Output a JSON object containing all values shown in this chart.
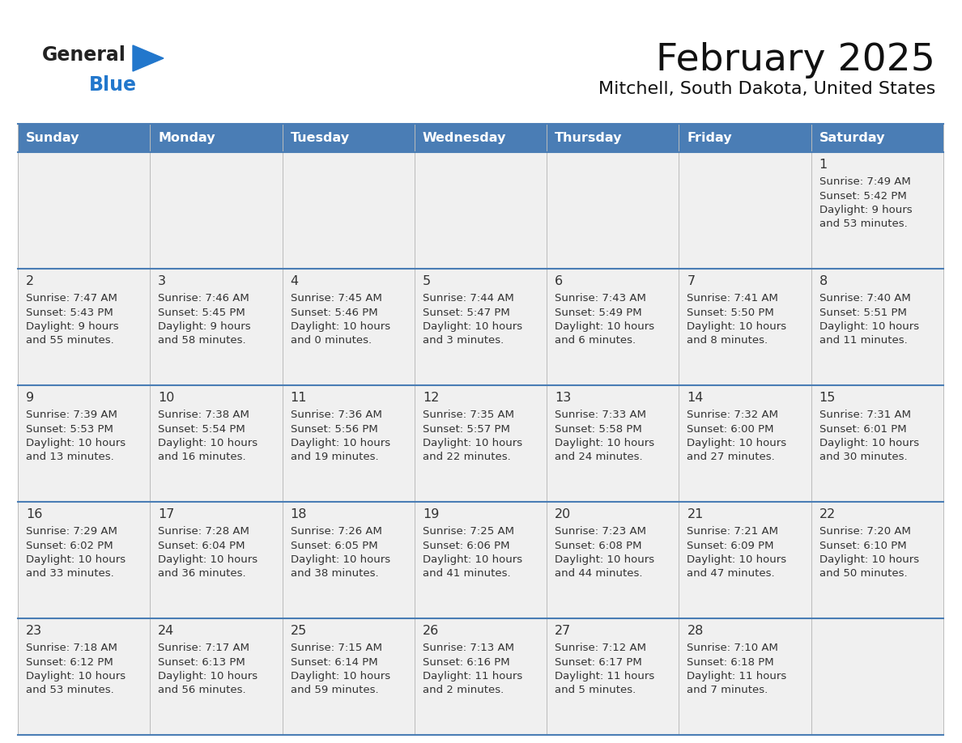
{
  "title": "February 2025",
  "subtitle": "Mitchell, South Dakota, United States",
  "header_color": "#4A7DB5",
  "header_text_color": "#FFFFFF",
  "cell_bg": "#F0F0F0",
  "row1_bg": "#F0F0F0",
  "border_color": "#4A7DB5",
  "grid_color": "#BBBBBB",
  "day_headers": [
    "Sunday",
    "Monday",
    "Tuesday",
    "Wednesday",
    "Thursday",
    "Friday",
    "Saturday"
  ],
  "logo_text1": "General",
  "logo_text2": "Blue",
  "logo_color1": "#222222",
  "logo_color2": "#2277CC",
  "triangle_color": "#2277CC",
  "text_color": "#333333",
  "days": [
    {
      "day": 1,
      "col": 6,
      "row": 0,
      "sunrise": "7:49 AM",
      "sunset": "5:42 PM",
      "daylight_line1": "Daylight: 9 hours",
      "daylight_line2": "and 53 minutes."
    },
    {
      "day": 2,
      "col": 0,
      "row": 1,
      "sunrise": "7:47 AM",
      "sunset": "5:43 PM",
      "daylight_line1": "Daylight: 9 hours",
      "daylight_line2": "and 55 minutes."
    },
    {
      "day": 3,
      "col": 1,
      "row": 1,
      "sunrise": "7:46 AM",
      "sunset": "5:45 PM",
      "daylight_line1": "Daylight: 9 hours",
      "daylight_line2": "and 58 minutes."
    },
    {
      "day": 4,
      "col": 2,
      "row": 1,
      "sunrise": "7:45 AM",
      "sunset": "5:46 PM",
      "daylight_line1": "Daylight: 10 hours",
      "daylight_line2": "and 0 minutes."
    },
    {
      "day": 5,
      "col": 3,
      "row": 1,
      "sunrise": "7:44 AM",
      "sunset": "5:47 PM",
      "daylight_line1": "Daylight: 10 hours",
      "daylight_line2": "and 3 minutes."
    },
    {
      "day": 6,
      "col": 4,
      "row": 1,
      "sunrise": "7:43 AM",
      "sunset": "5:49 PM",
      "daylight_line1": "Daylight: 10 hours",
      "daylight_line2": "and 6 minutes."
    },
    {
      "day": 7,
      "col": 5,
      "row": 1,
      "sunrise": "7:41 AM",
      "sunset": "5:50 PM",
      "daylight_line1": "Daylight: 10 hours",
      "daylight_line2": "and 8 minutes."
    },
    {
      "day": 8,
      "col": 6,
      "row": 1,
      "sunrise": "7:40 AM",
      "sunset": "5:51 PM",
      "daylight_line1": "Daylight: 10 hours",
      "daylight_line2": "and 11 minutes."
    },
    {
      "day": 9,
      "col": 0,
      "row": 2,
      "sunrise": "7:39 AM",
      "sunset": "5:53 PM",
      "daylight_line1": "Daylight: 10 hours",
      "daylight_line2": "and 13 minutes."
    },
    {
      "day": 10,
      "col": 1,
      "row": 2,
      "sunrise": "7:38 AM",
      "sunset": "5:54 PM",
      "daylight_line1": "Daylight: 10 hours",
      "daylight_line2": "and 16 minutes."
    },
    {
      "day": 11,
      "col": 2,
      "row": 2,
      "sunrise": "7:36 AM",
      "sunset": "5:56 PM",
      "daylight_line1": "Daylight: 10 hours",
      "daylight_line2": "and 19 minutes."
    },
    {
      "day": 12,
      "col": 3,
      "row": 2,
      "sunrise": "7:35 AM",
      "sunset": "5:57 PM",
      "daylight_line1": "Daylight: 10 hours",
      "daylight_line2": "and 22 minutes."
    },
    {
      "day": 13,
      "col": 4,
      "row": 2,
      "sunrise": "7:33 AM",
      "sunset": "5:58 PM",
      "daylight_line1": "Daylight: 10 hours",
      "daylight_line2": "and 24 minutes."
    },
    {
      "day": 14,
      "col": 5,
      "row": 2,
      "sunrise": "7:32 AM",
      "sunset": "6:00 PM",
      "daylight_line1": "Daylight: 10 hours",
      "daylight_line2": "and 27 minutes."
    },
    {
      "day": 15,
      "col": 6,
      "row": 2,
      "sunrise": "7:31 AM",
      "sunset": "6:01 PM",
      "daylight_line1": "Daylight: 10 hours",
      "daylight_line2": "and 30 minutes."
    },
    {
      "day": 16,
      "col": 0,
      "row": 3,
      "sunrise": "7:29 AM",
      "sunset": "6:02 PM",
      "daylight_line1": "Daylight: 10 hours",
      "daylight_line2": "and 33 minutes."
    },
    {
      "day": 17,
      "col": 1,
      "row": 3,
      "sunrise": "7:28 AM",
      "sunset": "6:04 PM",
      "daylight_line1": "Daylight: 10 hours",
      "daylight_line2": "and 36 minutes."
    },
    {
      "day": 18,
      "col": 2,
      "row": 3,
      "sunrise": "7:26 AM",
      "sunset": "6:05 PM",
      "daylight_line1": "Daylight: 10 hours",
      "daylight_line2": "and 38 minutes."
    },
    {
      "day": 19,
      "col": 3,
      "row": 3,
      "sunrise": "7:25 AM",
      "sunset": "6:06 PM",
      "daylight_line1": "Daylight: 10 hours",
      "daylight_line2": "and 41 minutes."
    },
    {
      "day": 20,
      "col": 4,
      "row": 3,
      "sunrise": "7:23 AM",
      "sunset": "6:08 PM",
      "daylight_line1": "Daylight: 10 hours",
      "daylight_line2": "and 44 minutes."
    },
    {
      "day": 21,
      "col": 5,
      "row": 3,
      "sunrise": "7:21 AM",
      "sunset": "6:09 PM",
      "daylight_line1": "Daylight: 10 hours",
      "daylight_line2": "and 47 minutes."
    },
    {
      "day": 22,
      "col": 6,
      "row": 3,
      "sunrise": "7:20 AM",
      "sunset": "6:10 PM",
      "daylight_line1": "Daylight: 10 hours",
      "daylight_line2": "and 50 minutes."
    },
    {
      "day": 23,
      "col": 0,
      "row": 4,
      "sunrise": "7:18 AM",
      "sunset": "6:12 PM",
      "daylight_line1": "Daylight: 10 hours",
      "daylight_line2": "and 53 minutes."
    },
    {
      "day": 24,
      "col": 1,
      "row": 4,
      "sunrise": "7:17 AM",
      "sunset": "6:13 PM",
      "daylight_line1": "Daylight: 10 hours",
      "daylight_line2": "and 56 minutes."
    },
    {
      "day": 25,
      "col": 2,
      "row": 4,
      "sunrise": "7:15 AM",
      "sunset": "6:14 PM",
      "daylight_line1": "Daylight: 10 hours",
      "daylight_line2": "and 59 minutes."
    },
    {
      "day": 26,
      "col": 3,
      "row": 4,
      "sunrise": "7:13 AM",
      "sunset": "6:16 PM",
      "daylight_line1": "Daylight: 11 hours",
      "daylight_line2": "and 2 minutes."
    },
    {
      "day": 27,
      "col": 4,
      "row": 4,
      "sunrise": "7:12 AM",
      "sunset": "6:17 PM",
      "daylight_line1": "Daylight: 11 hours",
      "daylight_line2": "and 5 minutes."
    },
    {
      "day": 28,
      "col": 5,
      "row": 4,
      "sunrise": "7:10 AM",
      "sunset": "6:18 PM",
      "daylight_line1": "Daylight: 11 hours",
      "daylight_line2": "and 7 minutes."
    }
  ]
}
